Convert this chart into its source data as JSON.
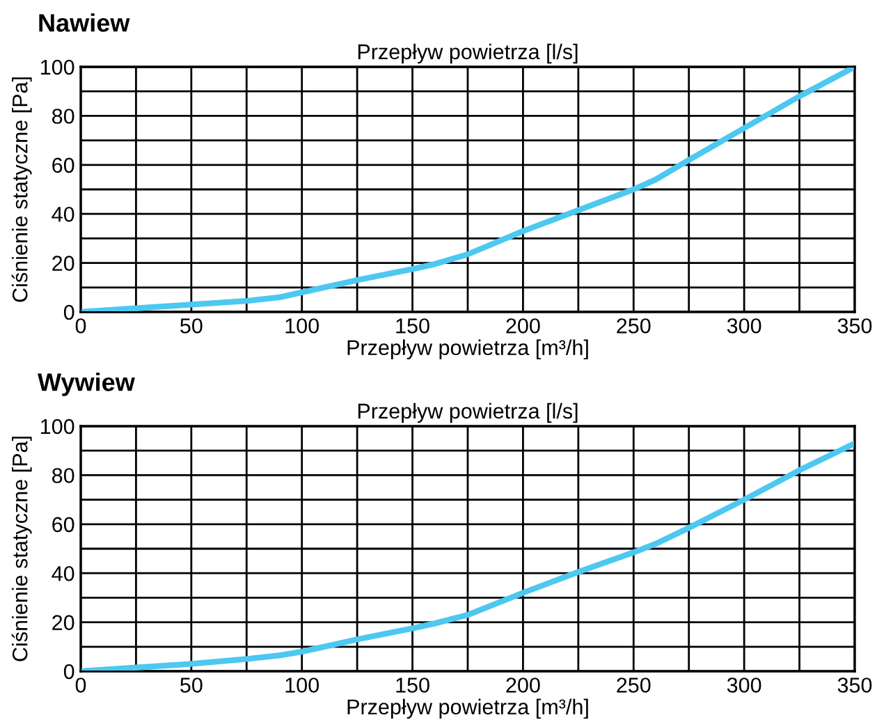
{
  "chart_data": [
    {
      "type": "line",
      "title": "Nawiew",
      "xlabel": "Przepływ powietrza [m³/h]",
      "x2label": "Przepływ powietrza [l/s]",
      "ylabel": "Ciśnienie statyczne [Pa]",
      "x": [
        0,
        25,
        50,
        75,
        90,
        100,
        125,
        150,
        160,
        175,
        200,
        225,
        250,
        260,
        275,
        300,
        325,
        350
      ],
      "series": [
        {
          "color": "#4dc8f0",
          "values": [
            0,
            1.5,
            3,
            4.5,
            6,
            8,
            13,
            17.5,
            19.5,
            23.5,
            33,
            41.5,
            50,
            54,
            62,
            75,
            88,
            100
          ]
        }
      ],
      "xlim": [
        0,
        350
      ],
      "ylim": [
        0,
        100
      ],
      "xticks": [
        0,
        {
          "value": 25,
          "label": null
        },
        50,
        {
          "value": 75,
          "label": null
        },
        100,
        {
          "value": 125,
          "label": null
        },
        150,
        {
          "value": 175,
          "label": null
        },
        200,
        {
          "value": 225,
          "label": null
        },
        250,
        {
          "value": 275,
          "label": null
        },
        300,
        {
          "value": 325,
          "label": null
        },
        350
      ],
      "yticks": [
        0,
        {
          "value": 10,
          "label": null
        },
        20,
        {
          "value": 30,
          "label": null
        },
        40,
        {
          "value": 50,
          "label": null
        },
        60,
        {
          "value": 70,
          "label": null
        },
        80,
        {
          "value": 90,
          "label": null
        },
        100
      ],
      "grid": true,
      "legend": false,
      "marker": "none",
      "line_style": "solid"
    },
    {
      "type": "line",
      "title": "Wywiew",
      "xlabel": "Przepływ powietrza [m³/h]",
      "x2label": "Przepływ powietrza [l/s]",
      "ylabel": "Ciśnienie statyczne [Pa]",
      "x": [
        0,
        25,
        50,
        75,
        90,
        100,
        125,
        150,
        160,
        175,
        200,
        225,
        250,
        260,
        275,
        300,
        325,
        350
      ],
      "series": [
        {
          "color": "#4dc8f0",
          "values": [
            0,
            1.5,
            3,
            5,
            6.5,
            8,
            13,
            17.5,
            19.5,
            23,
            32,
            40.5,
            48.5,
            52,
            58.5,
            70,
            82,
            93
          ]
        }
      ],
      "xlim": [
        0,
        350
      ],
      "ylim": [
        0,
        100
      ],
      "xticks": [
        0,
        {
          "value": 25,
          "label": null
        },
        50,
        {
          "value": 75,
          "label": null
        },
        100,
        {
          "value": 125,
          "label": null
        },
        150,
        {
          "value": 175,
          "label": null
        },
        200,
        {
          "value": 225,
          "label": null
        },
        250,
        {
          "value": 275,
          "label": null
        },
        300,
        {
          "value": 325,
          "label": null
        },
        350
      ],
      "yticks": [
        0,
        {
          "value": 10,
          "label": null
        },
        20,
        {
          "value": 30,
          "label": null
        },
        40,
        {
          "value": 50,
          "label": null
        },
        60,
        {
          "value": 70,
          "label": null
        },
        80,
        {
          "value": 90,
          "label": null
        },
        100
      ],
      "grid": true,
      "legend": false,
      "marker": "none",
      "line_style": "solid"
    }
  ]
}
